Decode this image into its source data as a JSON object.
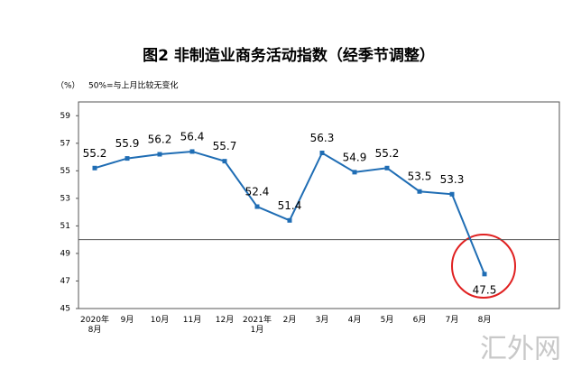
{
  "chart_data": {
    "type": "line",
    "title": "图2  非制造业商务活动指数（经季节调整）",
    "unit_label": "（%）",
    "note": "50%=与上月比较无变化",
    "watermark": "汇外网",
    "categories": [
      "2020年\n8月",
      "9月",
      "10月",
      "11月",
      "12月",
      "2021年\n1月",
      "2月",
      "3月",
      "4月",
      "5月",
      "6月",
      "7月",
      "8月"
    ],
    "series": [
      {
        "name": "非制造业商务活动指数",
        "color": "#1f6db4",
        "values": [
          55.2,
          55.9,
          56.2,
          56.4,
          55.7,
          52.4,
          51.4,
          56.3,
          54.9,
          55.2,
          53.5,
          53.3,
          47.5
        ]
      }
    ],
    "ylim": [
      45,
      60
    ],
    "yticks": [
      45,
      47,
      49,
      51,
      53,
      55,
      57,
      59
    ],
    "reference_line": 50
  }
}
